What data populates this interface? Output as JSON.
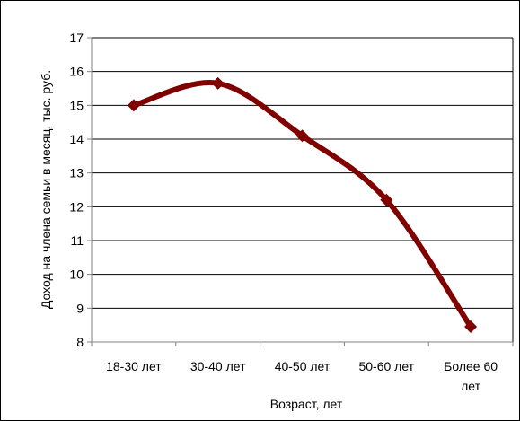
{
  "chart_data": {
    "type": "line",
    "categories": [
      [
        "18-30 лет"
      ],
      [
        "30-40 лет"
      ],
      [
        "40-50 лет"
      ],
      [
        "50-60 лет"
      ],
      [
        "Более 60",
        "лет"
      ]
    ],
    "series": [
      {
        "values": [
          15.0,
          15.65,
          14.1,
          12.2,
          8.45
        ]
      }
    ],
    "ylabel": "Доход на члена семьи в месяц, тыс. руб.",
    "xlabel": "Возраст, лет",
    "ylim": [
      8,
      17
    ],
    "yticks": [
      8,
      9,
      10,
      11,
      12,
      13,
      14,
      15,
      16,
      17
    ],
    "grid": "horizontal",
    "legend": "none",
    "colors": {
      "line": "#800000",
      "grid": "#000000",
      "axis": "#808080"
    }
  }
}
